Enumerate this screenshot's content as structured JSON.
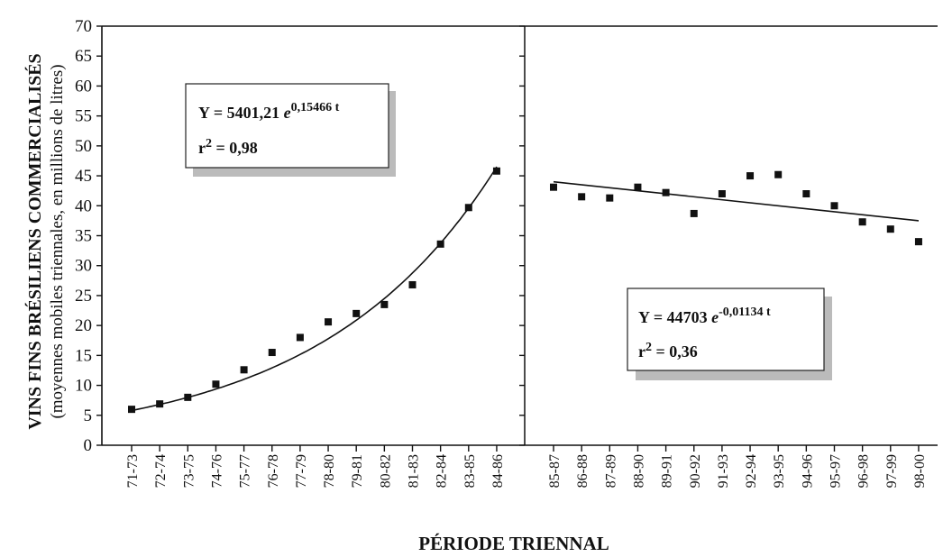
{
  "chart_data": {
    "type": "scatter",
    "ylabel": "VINS FINS BRÉSILIENS COMMERCIALISÉS",
    "ylabel_sub": "(moyennes mobiles triennales, en millions de litres)",
    "xlabel": "PÉRIODE TRIENNAL",
    "ylim": [
      0,
      70
    ],
    "yticks": [
      0,
      5,
      10,
      15,
      20,
      25,
      30,
      35,
      40,
      45,
      50,
      55,
      60,
      65,
      70
    ],
    "grid": false,
    "panels": [
      {
        "name": "left",
        "categories": [
          "71-73",
          "72-74",
          "73-75",
          "74-76",
          "75-77",
          "76-78",
          "77-79",
          "78-80",
          "79-81",
          "80-82",
          "81-83",
          "82-84",
          "83-85",
          "84-86"
        ],
        "values": [
          6,
          6.9,
          8,
          10.2,
          12.6,
          15.5,
          18,
          20.6,
          22,
          23.5,
          26.8,
          33.6,
          39.7,
          45.8
        ],
        "trend": {
          "type": "exponential",
          "a": 5401.21,
          "b": 0.15466
        },
        "equation": {
          "base": "Y = 5401,21 ",
          "e": "e",
          "exponent": "0,15466 t",
          "r2_prefix": "r",
          "r2_exp": "2",
          "r2_suffix": " = 0,98"
        }
      },
      {
        "name": "right",
        "categories": [
          "85-87",
          "86-88",
          "87-89",
          "88-90",
          "89-91",
          "90-92",
          "91-93",
          "92-94",
          "93-95",
          "94-96",
          "95-97",
          "96-98",
          "97-99",
          "98-00"
        ],
        "values": [
          43.1,
          41.5,
          41.3,
          43.1,
          42.2,
          38.7,
          42,
          45,
          45.2,
          42,
          40,
          37.3,
          36.1,
          34
        ],
        "trend": {
          "type": "exponential",
          "a": 44703,
          "b": -0.01134,
          "start": 44,
          "end": 37.5
        },
        "equation": {
          "base": "Y = 44703 ",
          "e": "e",
          "exponent": "-0,01134 t",
          "r2_prefix": "r",
          "r2_exp": "2",
          "r2_suffix": " = 0,36"
        }
      }
    ]
  }
}
